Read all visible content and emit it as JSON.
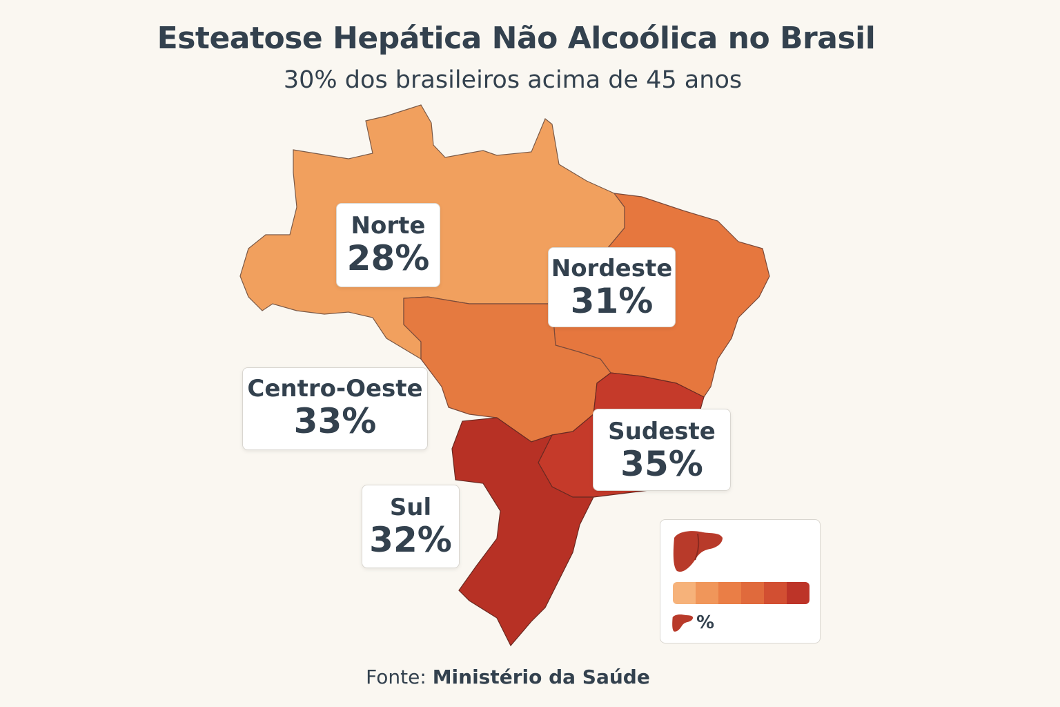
{
  "title": "Esteatose Hepática Não Alcoólica no Brasil",
  "subtitle": "30% dos brasileiros acima de 45 anos",
  "regions": {
    "norte": {
      "name": "Norte",
      "value": "28%",
      "color": "#f1a05e"
    },
    "nordeste": {
      "name": "Nordeste",
      "value": "31%",
      "color": "#e6773e"
    },
    "centro_oeste": {
      "name": "Centro-Oeste",
      "value": "33%",
      "color": "#e57a40"
    },
    "sudeste": {
      "name": "Sudeste",
      "value": "35%",
      "color": "#c53a2a"
    },
    "sul": {
      "name": "Sul",
      "value": "32%",
      "color": "#b73125"
    }
  },
  "legend": {
    "liver_icon": "liver-icon",
    "scale_colors": [
      "#f6b27a",
      "#f0965a",
      "#ea7e46",
      "#e06a3c",
      "#d24f32",
      "#bd3428"
    ],
    "percent_label": "%"
  },
  "source": {
    "prefix": "Fonte:",
    "name": "Ministério da Saúde"
  }
}
